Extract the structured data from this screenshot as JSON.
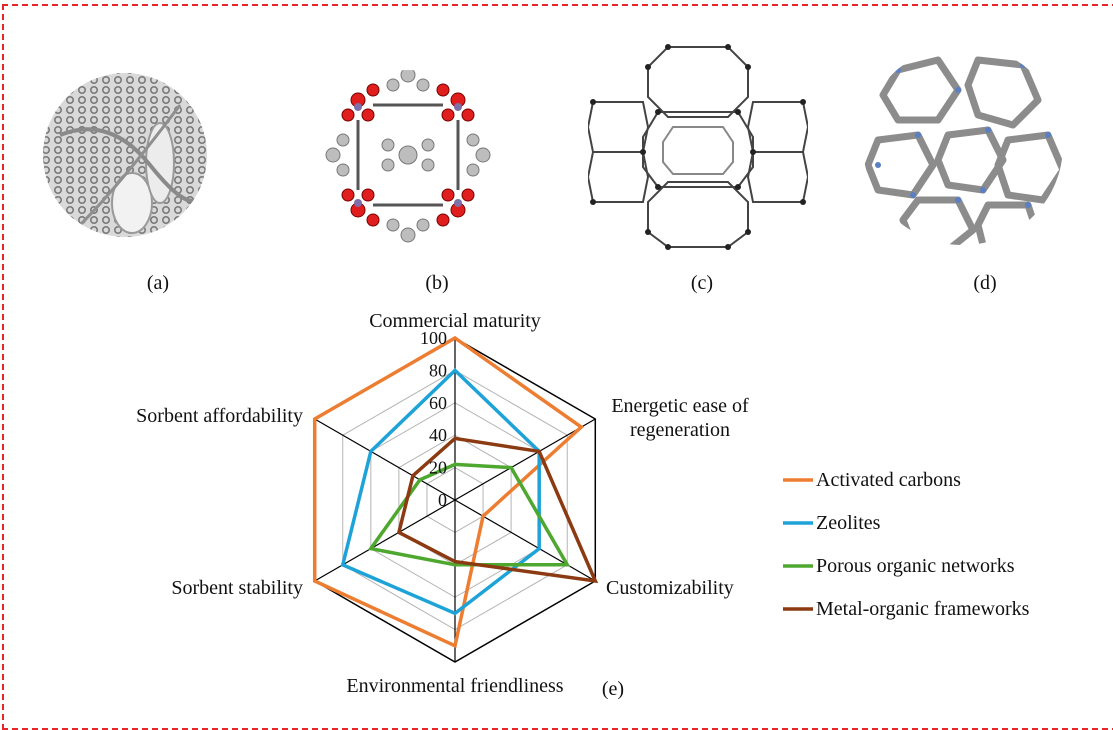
{
  "panels": [
    {
      "caption": "(a)",
      "icon": "activated-carbon-structure"
    },
    {
      "caption": "(b)",
      "icon": "metal-organic-framework-structure"
    },
    {
      "caption": "(c)",
      "icon": "zeolite-structure"
    },
    {
      "caption": "(d)",
      "icon": "porous-organic-network-structure"
    }
  ],
  "chart_caption": "(e)",
  "chart_data": {
    "type": "radar",
    "axes": [
      "Commercial maturity",
      "Energetic ease of regeneration",
      "Customizability",
      "Environmental friendliness",
      "Sorbent stability",
      "Sorbent affordability"
    ],
    "axis_label_lines": [
      [
        "Commercial maturity"
      ],
      [
        "Energetic ease of",
        "regeneration"
      ],
      [
        "Customizability"
      ],
      [
        "Environmental friendliness"
      ],
      [
        "Sorbent stability"
      ],
      [
        "Sorbent affordability"
      ]
    ],
    "ticks": [
      0,
      20,
      40,
      60,
      80,
      100
    ],
    "rmax": 100,
    "grid": true,
    "legend_position": "right",
    "series": [
      {
        "name": "Activated carbons",
        "color": "#ed7d31",
        "values": [
          100,
          90,
          20,
          90,
          100,
          100
        ]
      },
      {
        "name": "Zeolites",
        "color": "#1ea3d8",
        "values": [
          80,
          60,
          60,
          70,
          80,
          60
        ]
      },
      {
        "name": "Porous organic networks",
        "color": "#4ea72e",
        "values": [
          22,
          40,
          80,
          40,
          60,
          25
        ]
      },
      {
        "name": "Metal-organic frameworks",
        "color": "#8b3a12",
        "values": [
          38,
          60,
          100,
          38,
          40,
          30
        ]
      }
    ]
  }
}
